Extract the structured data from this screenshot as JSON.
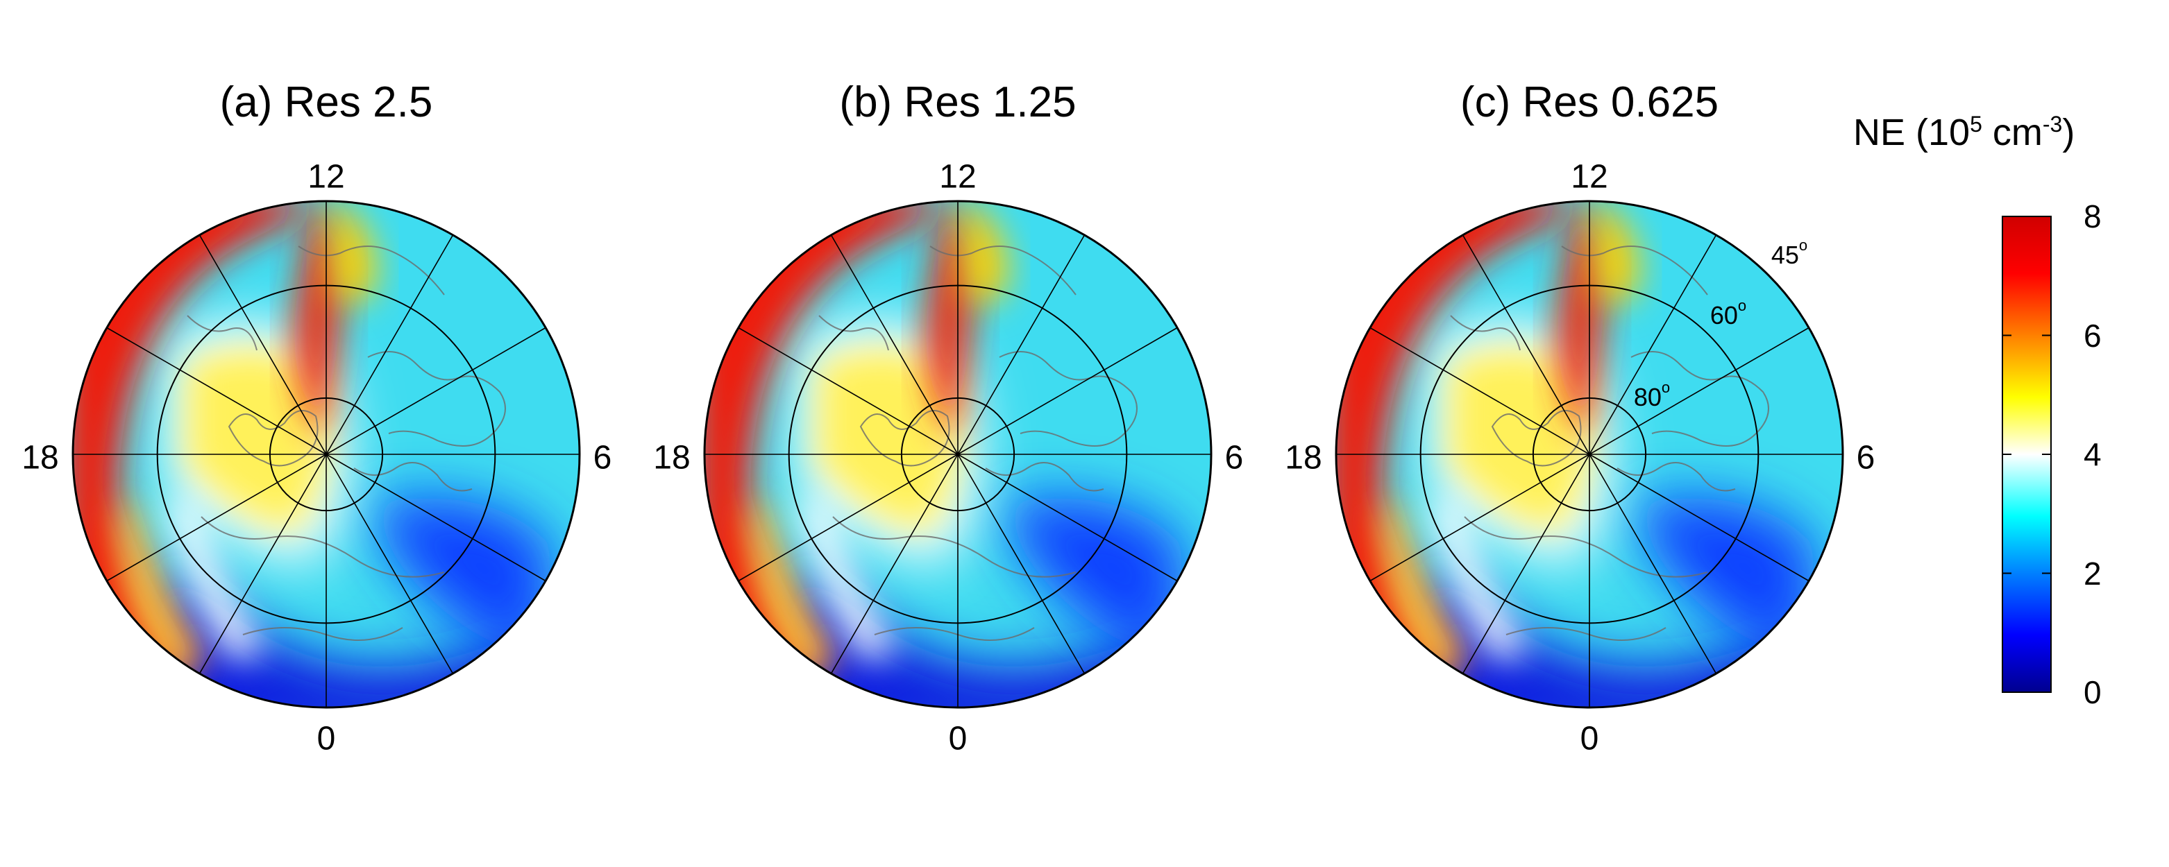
{
  "panels": [
    {
      "title": "(a) Res 2.5"
    },
    {
      "title": "(b) Res 1.25"
    },
    {
      "title": "(c) Res 0.625"
    }
  ],
  "mlt_labels": {
    "top": "12",
    "bottom": "0",
    "left": "18",
    "right": "6"
  },
  "latitude_labels": {
    "lat45": "45",
    "lat60": "60",
    "lat80": "80",
    "degree_mark": "o"
  },
  "colorbar": {
    "label_prefix": "NE (10",
    "label_exp1": "5",
    "label_mid": " cm",
    "label_exp2": "-3",
    "label_suffix": ")",
    "ticks": [
      "0",
      "2",
      "4",
      "6",
      "8"
    ],
    "min": 0,
    "max": 8,
    "colors": [
      "#00008f",
      "#0000ff",
      "#0080ff",
      "#00ffff",
      "#ffffff",
      "#ffff00",
      "#ff8000",
      "#ff0000",
      "#d00000"
    ]
  },
  "chart_data": {
    "type": "heatmap",
    "projection": "polar (north pole, magnetic local time)",
    "variable": "NE",
    "units": "10^5 cm^-3",
    "clim": [
      0,
      8
    ],
    "latitude_circles": [
      45,
      60,
      80
    ],
    "radial_lines": 12,
    "panels": [
      "(a) Res 2.5",
      "(b) Res 1.25",
      "(c) Res 0.625"
    ]
  }
}
